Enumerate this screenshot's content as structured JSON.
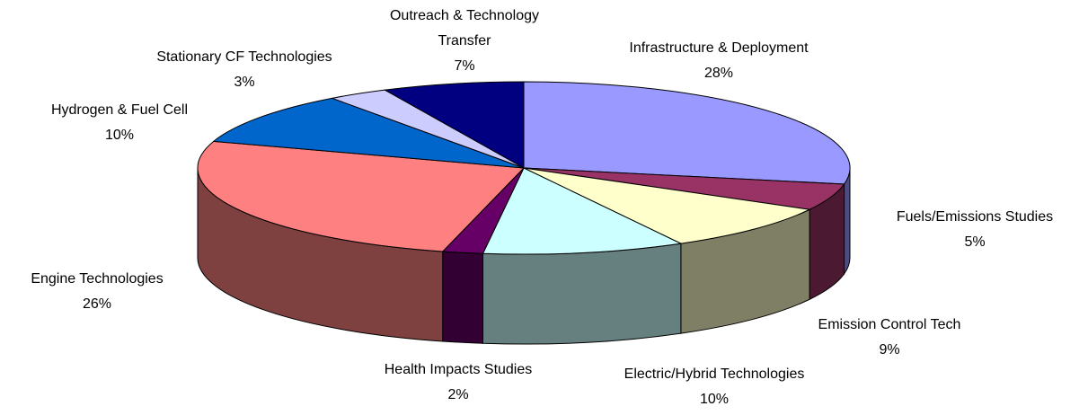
{
  "chart_data": {
    "type": "pie3d",
    "categories": [
      "Infrastructure & Deployment",
      "Fuels/Emissions Studies",
      "Emission Control Tech",
      "Electric/Hybrid Technologies",
      "Health Impacts Studies",
      "Engine Technologies",
      "Hydrogen & Fuel Cell",
      "Stationary CF Technologies",
      "Outreach & Technology Transfer"
    ],
    "values": [
      28,
      5,
      9,
      10,
      2,
      26,
      10,
      3,
      7
    ],
    "value_labels": [
      "28%",
      "5%",
      "9%",
      "10%",
      "2%",
      "26%",
      "10%",
      "3%",
      "7%"
    ],
    "colors": [
      "#9999ff",
      "#993366",
      "#ffffcc",
      "#ccffff",
      "#660066",
      "#ff8080",
      "#0066cc",
      "#ccccff",
      "#000080"
    ]
  }
}
